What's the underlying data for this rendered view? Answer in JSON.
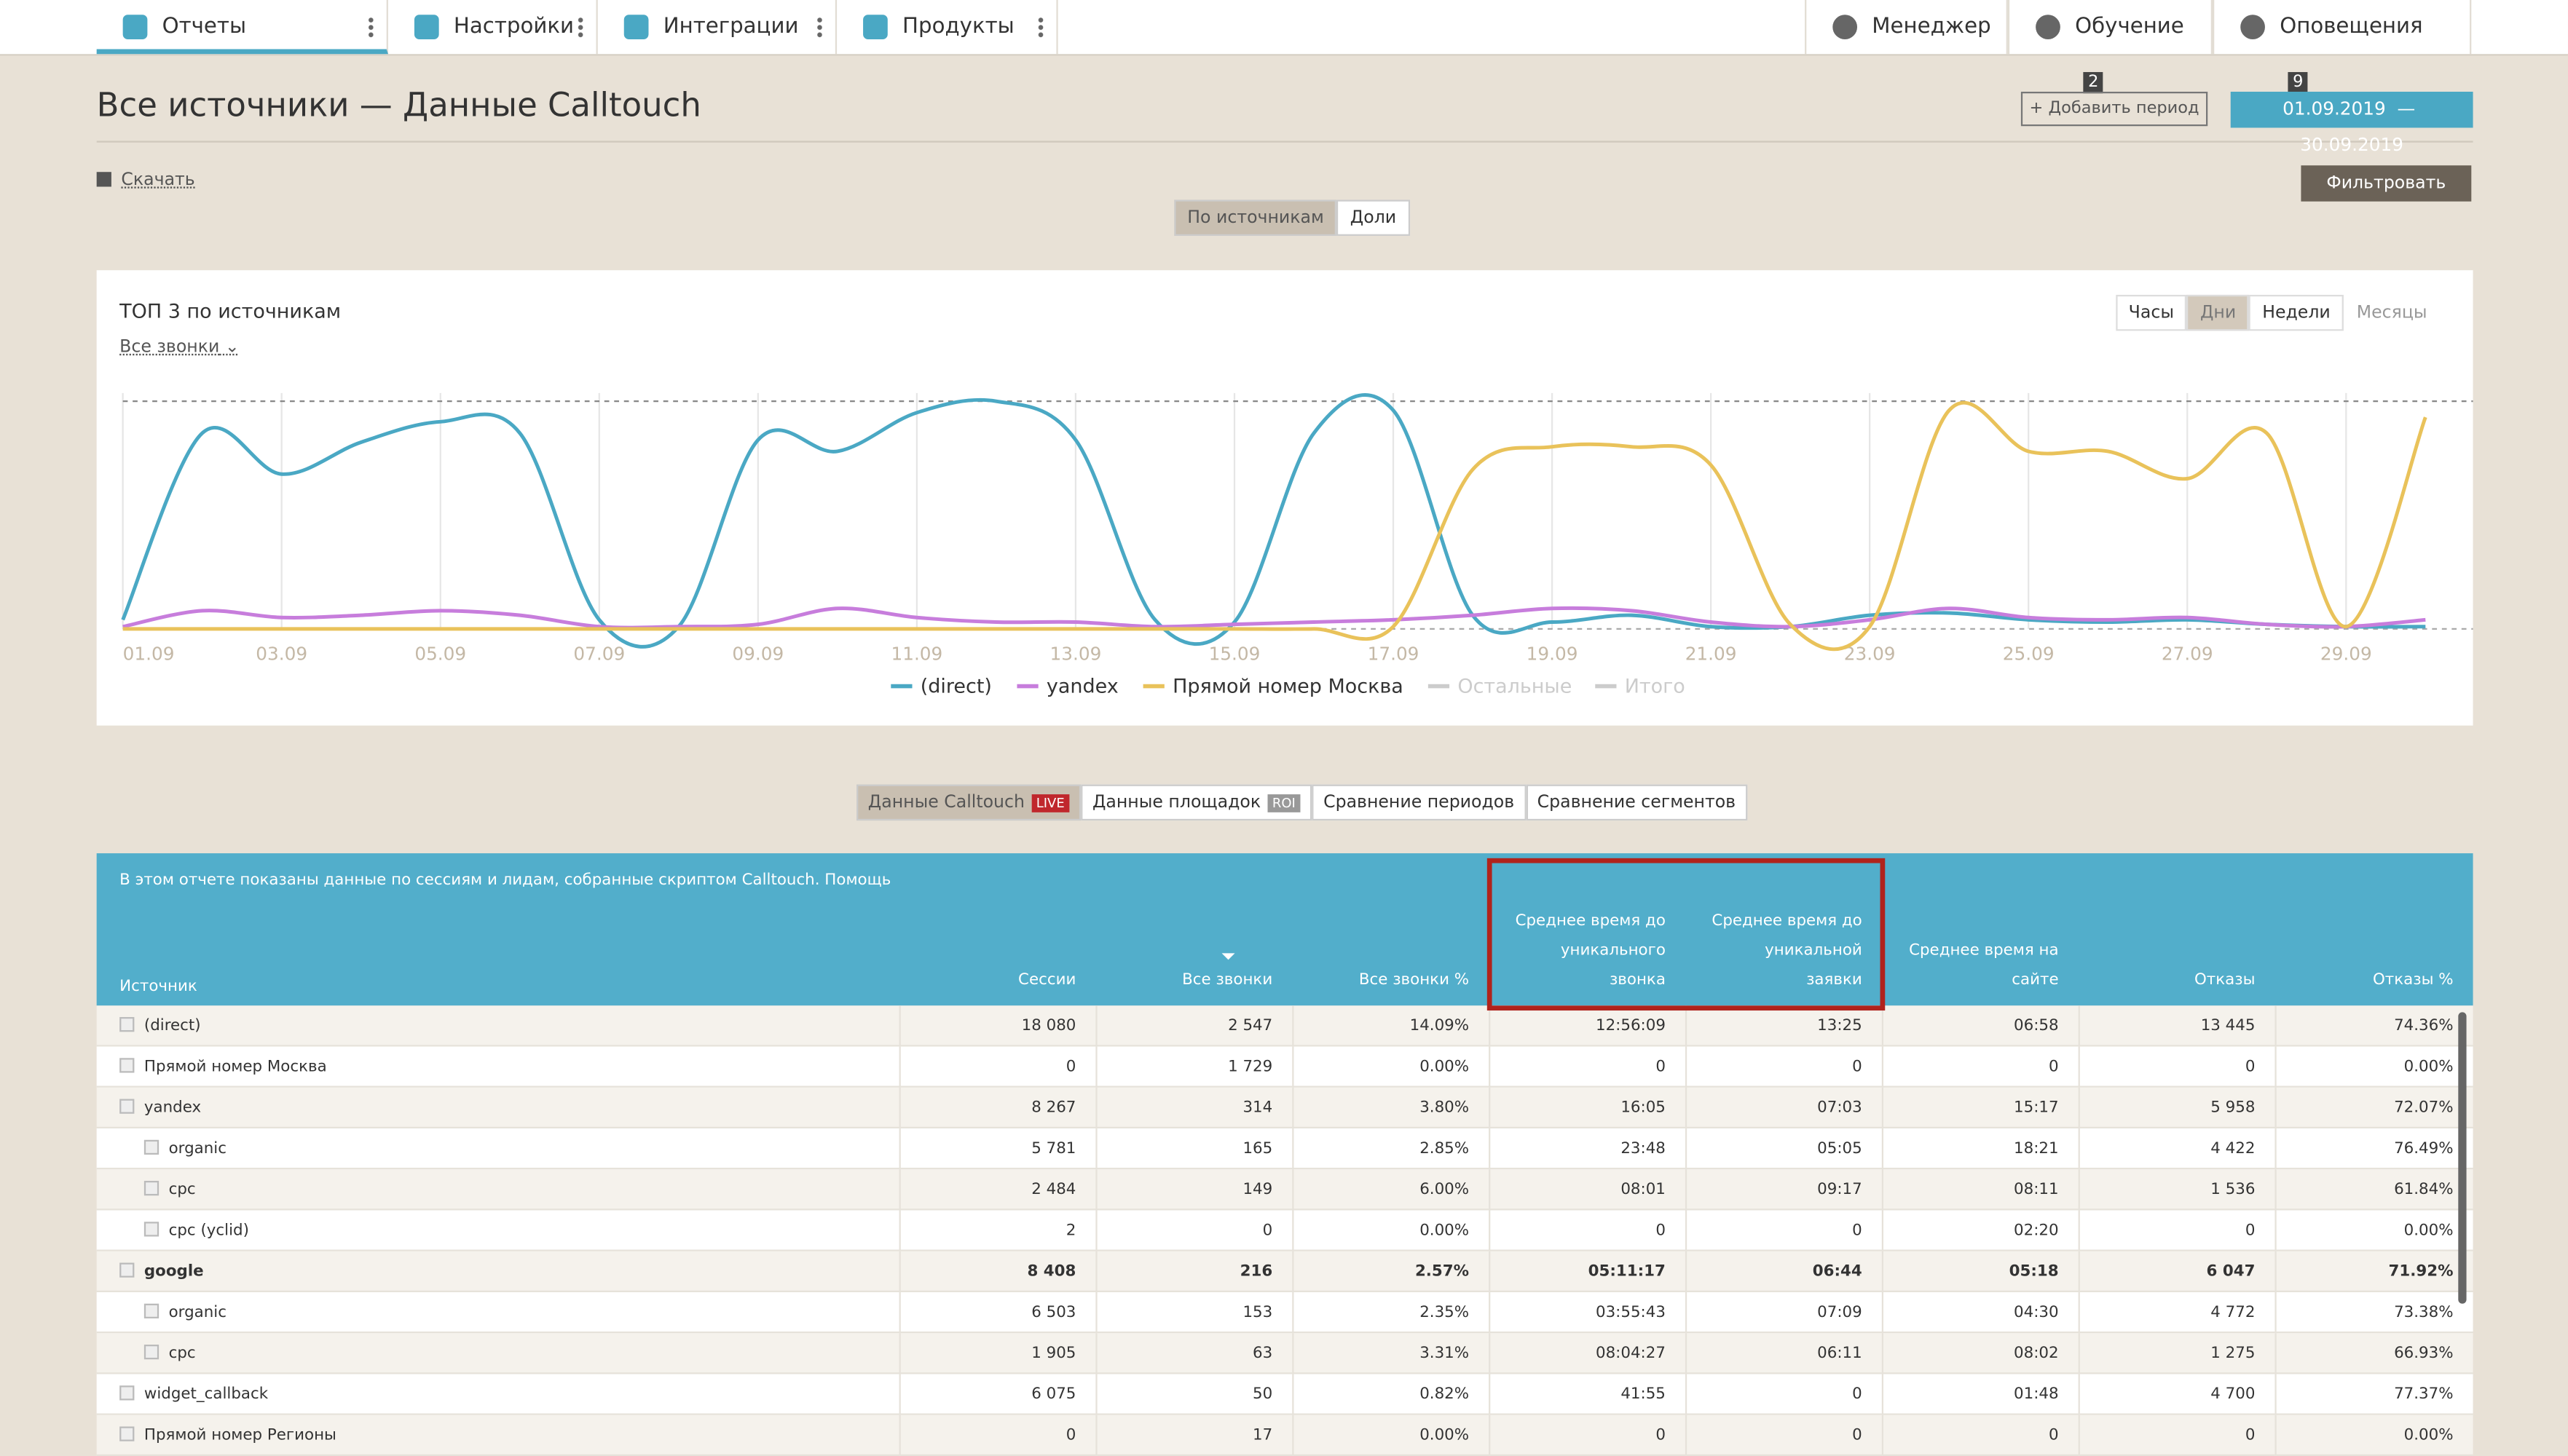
{
  "nav": {
    "tabs": [
      "Отчеты",
      "Настройки",
      "Интеграции",
      "Продукты"
    ],
    "right": [
      {
        "label": "Менеджер"
      },
      {
        "label": "Обучение",
        "badge": "2"
      },
      {
        "label": "Оповещения",
        "badge": "9"
      }
    ]
  },
  "header": {
    "title": "Все источники — Данные Calltouch",
    "add_period": "Добавить период",
    "date_from": "01.09.2019",
    "date_sep": "—",
    "date_to": "30.09.2019",
    "download": "Скачать",
    "filter": "Фильтровать",
    "view_toggle": [
      "По источникам",
      "Доли"
    ]
  },
  "chart_card": {
    "title": "ТОП 3 по источникам",
    "metric": "Все звонки",
    "periods": [
      "Часы",
      "Дни",
      "Недели",
      "Месяцы"
    ],
    "active_period": 1,
    "chart_data": {
      "type": "line",
      "categories": [
        "01.09",
        null,
        "03.09",
        null,
        "05.09",
        null,
        "07.09",
        null,
        "09.09",
        null,
        "11.09",
        null,
        "13.09",
        null,
        "15.09",
        null,
        "17.09",
        null,
        "19.09",
        null,
        "21.09",
        null,
        "23.09",
        null,
        "25.09",
        null,
        "27.09",
        null,
        "29.09",
        null
      ],
      "series": [
        {
          "name": "(direct)",
          "color": "#4aa8c4",
          "values": [
            4,
            86,
            68,
            82,
            91,
            86,
            4,
            1,
            83,
            78,
            95,
            100,
            83,
            4,
            3,
            86,
            96,
            6,
            3,
            6,
            1,
            1,
            6,
            7,
            4,
            3,
            4,
            2,
            1,
            1
          ]
        },
        {
          "name": "yandex",
          "color": "#c77ddc",
          "values": [
            1,
            8,
            5,
            6,
            8,
            6,
            1,
            1,
            2,
            9,
            5,
            3,
            3,
            1,
            2,
            3,
            4,
            6,
            9,
            8,
            3,
            1,
            4,
            9,
            5,
            4,
            5,
            2,
            1,
            4
          ]
        },
        {
          "name": "Прямой номер Москва",
          "color": "#e9c25a",
          "values": [
            0,
            0,
            0,
            0,
            0,
            0,
            0,
            0,
            0,
            0,
            0,
            0,
            0,
            0,
            0,
            0,
            1,
            70,
            80,
            80,
            72,
            2,
            1,
            96,
            78,
            78,
            66,
            86,
            1,
            93
          ]
        }
      ],
      "hidden_series": [
        {
          "name": "Остальные",
          "color": "#cccccc"
        },
        {
          "name": "Итого",
          "color": "#cccccc"
        }
      ]
    }
  },
  "report_tabs": [
    {
      "label": "Данные Calltouch",
      "badge": "LIVE"
    },
    {
      "label": "Данные площадок",
      "badge": "ROI"
    },
    {
      "label": "Сравнение периодов"
    },
    {
      "label": "Сравнение сегментов"
    }
  ],
  "table": {
    "note": "В этом отчете показаны данные по сессиям и лидам, собранные скриптом Calltouch. Помощь",
    "columns": [
      "Источник",
      "Сессии",
      "Все звонки",
      "Все звонки %",
      "Среднее время до уникального звонка",
      "Среднее время до уникальной заявки",
      "Среднее время на сайте",
      "Отказы",
      "Отказы %"
    ],
    "rows": [
      {
        "level": 0,
        "open": false,
        "bold": false,
        "cells": [
          "(direct)",
          "18 080",
          "2 547",
          "14.09%",
          "12:56:09",
          "13:25",
          "06:58",
          "13 445",
          "74.36%"
        ]
      },
      {
        "level": 0,
        "open": false,
        "bold": false,
        "cells": [
          "Прямой номер Москва",
          "0",
          "1 729",
          "0.00%",
          "0",
          "0",
          "0",
          "0",
          "0.00%"
        ]
      },
      {
        "level": 0,
        "open": true,
        "bold": false,
        "cells": [
          "yandex",
          "8 267",
          "314",
          "3.80%",
          "16:05",
          "07:03",
          "15:17",
          "5 958",
          "72.07%"
        ]
      },
      {
        "level": 1,
        "open": false,
        "bold": false,
        "cells": [
          "organic",
          "5 781",
          "165",
          "2.85%",
          "23:48",
          "05:05",
          "18:21",
          "4 422",
          "76.49%"
        ]
      },
      {
        "level": 1,
        "open": false,
        "bold": false,
        "cells": [
          "cpc",
          "2 484",
          "149",
          "6.00%",
          "08:01",
          "09:17",
          "08:11",
          "1 536",
          "61.84%"
        ]
      },
      {
        "level": 1,
        "open": false,
        "bold": false,
        "cells": [
          "cpc (yclid)",
          "2",
          "0",
          "0.00%",
          "0",
          "0",
          "02:20",
          "0",
          "0.00%"
        ]
      },
      {
        "level": 0,
        "open": true,
        "bold": true,
        "cells": [
          "google",
          "8 408",
          "216",
          "2.57%",
          "05:11:17",
          "06:44",
          "05:18",
          "6 047",
          "71.92%"
        ]
      },
      {
        "level": 1,
        "open": false,
        "bold": false,
        "cells": [
          "organic",
          "6 503",
          "153",
          "2.35%",
          "03:55:43",
          "07:09",
          "04:30",
          "4 772",
          "73.38%"
        ]
      },
      {
        "level": 1,
        "open": false,
        "bold": false,
        "cells": [
          "cpc",
          "1 905",
          "63",
          "3.31%",
          "08:04:27",
          "06:11",
          "08:02",
          "1 275",
          "66.93%"
        ]
      },
      {
        "level": 0,
        "open": false,
        "bold": false,
        "cells": [
          "widget_callback",
          "6 075",
          "50",
          "0.82%",
          "41:55",
          "0",
          "01:48",
          "4 700",
          "77.37%"
        ]
      },
      {
        "level": 0,
        "open": false,
        "bold": false,
        "cells": [
          "Прямой номер Регионы",
          "0",
          "17",
          "0.00%",
          "0",
          "0",
          "0",
          "0",
          "0.00%"
        ]
      }
    ]
  }
}
